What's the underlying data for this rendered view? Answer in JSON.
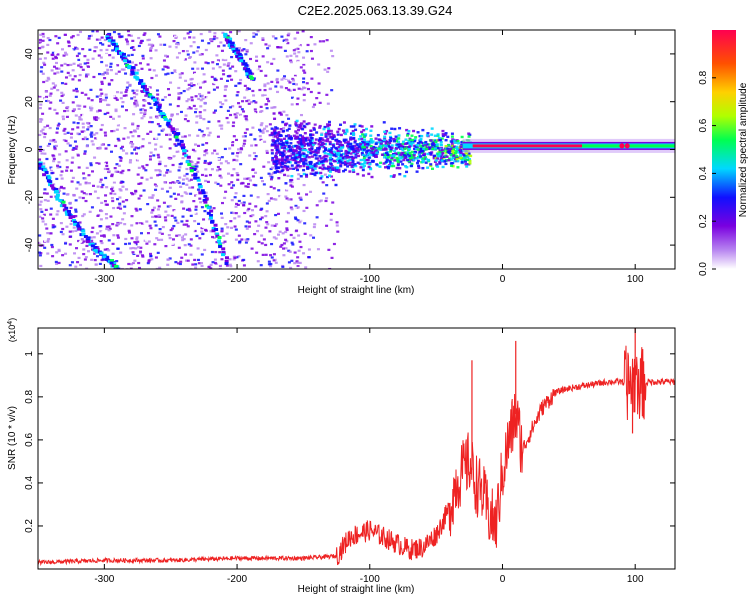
{
  "figure": {
    "title": "C2E2.2025.063.13.39.G24"
  },
  "colors": {
    "snr_line": "#ee2222",
    "axis": "#000000",
    "background": "#ffffff"
  },
  "chart_data": [
    {
      "id": "spectrogram",
      "type": "heatmap",
      "xlabel": "Height of straight line (km)",
      "ylabel": "Frequency (Hz)",
      "xlim": [
        -350,
        130
      ],
      "ylim": [
        -50,
        50
      ],
      "x_ticks": [
        -300,
        -200,
        -100,
        0,
        100
      ],
      "y_ticks": [
        -40,
        -20,
        0,
        20,
        40
      ],
      "grid": false,
      "features": [
        {
          "name": "diagonal-stripe-main",
          "x": [
            -298,
            -285,
            -265,
            -245,
            -225,
            -208
          ],
          "y": [
            48,
            38,
            22,
            5,
            -20,
            -48
          ]
        },
        {
          "name": "diagonal-stripe-left",
          "x": [
            -350,
            -330,
            -310,
            -290
          ],
          "y": [
            -5,
            -25,
            -40,
            -50
          ]
        },
        {
          "name": "diagonal-stripe-upper",
          "x": [
            -210,
            -200,
            -190
          ],
          "y": [
            48,
            40,
            30
          ]
        },
        {
          "name": "carrier-line",
          "x": [
            -30,
            130
          ],
          "y": [
            1.5,
            1.5
          ]
        }
      ],
      "colorbar": {
        "label": "Normalized spectral amplitude",
        "range": [
          0,
          1
        ],
        "ticks": [
          0.0,
          0.2,
          0.4,
          0.6,
          0.8
        ],
        "colormap": [
          "#ffffff",
          "#b784f0",
          "#7a00e0",
          "#1010ff",
          "#00d8ff",
          "#00ff50",
          "#b0ff00",
          "#ffd000",
          "#ff5000",
          "#ff0050"
        ]
      }
    },
    {
      "id": "snr",
      "type": "line",
      "xlabel": "Height of straight line (km)",
      "ylabel": "SNR (10 * v/v)",
      "y_multiplier": "(x10",
      "y_multiplier_exp": "4",
      "xlim": [
        -350,
        130
      ],
      "ylim": [
        0,
        1.12
      ],
      "x_ticks": [
        -300,
        -200,
        -100,
        0,
        100
      ],
      "y_ticks": [
        0.2,
        0.4,
        0.6,
        0.8,
        1
      ],
      "grid": false,
      "series": [
        {
          "x": [
            -350,
            -300,
            -250,
            -200,
            -150,
            -125,
            -115,
            -100,
            -90,
            -80,
            -70,
            -60,
            -50,
            -40,
            -35,
            -30,
            -25,
            -20,
            -15,
            -10,
            -5,
            0,
            5,
            10,
            15,
            20,
            30,
            40,
            50,
            60,
            70,
            80,
            90,
            95,
            100,
            105,
            110,
            120,
            130
          ],
          "y": [
            0.03,
            0.04,
            0.04,
            0.05,
            0.05,
            0.06,
            0.15,
            0.18,
            0.15,
            0.12,
            0.09,
            0.1,
            0.16,
            0.28,
            0.4,
            0.45,
            0.5,
            0.4,
            0.35,
            0.25,
            0.2,
            0.45,
            0.6,
            0.72,
            0.55,
            0.62,
            0.75,
            0.82,
            0.84,
            0.85,
            0.86,
            0.87,
            0.87,
            0.86,
            0.88,
            0.86,
            0.87,
            0.87,
            0.87
          ]
        }
      ],
      "annotations": [
        {
          "label": "spike",
          "x": 100,
          "y": 1.12
        },
        {
          "label": "spike",
          "x": 10,
          "y": 1.06
        },
        {
          "label": "spike",
          "x": -23,
          "y": 0.97
        },
        {
          "label": "dip",
          "x": 98,
          "y": 0.63
        }
      ]
    }
  ]
}
